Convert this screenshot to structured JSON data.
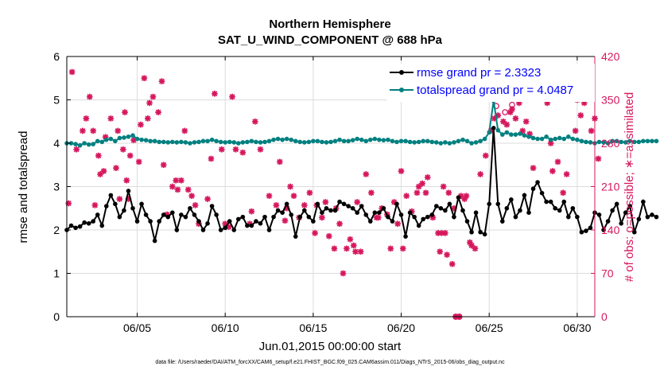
{
  "chart_data": {
    "type": "line",
    "title": "Northern Hemisphere",
    "subtitle": "SAT_U_WIND_COMPONENT @ 688 hPa",
    "xlabel": "Jun.01,2015 00:00:00 start",
    "ylabel": "rmse and totalspread",
    "ylabel_right": "# of obs: o=possible; ∗=assimilated",
    "footnote": "data file: /Users/raeder/DAI/ATM_forcXX/CAM6_setup/f.e21.FHIST_BGC.f09_025.CAM6assim.011/Diags_NTrS_2015-06/obs_diag_output.nc",
    "xlim": [
      1,
      31
    ],
    "ylim": [
      0,
      6
    ],
    "ylim_right": [
      0,
      420
    ],
    "xticks": [
      5,
      10,
      15,
      20,
      25,
      30
    ],
    "xtick_labels": [
      "06/05",
      "06/10",
      "06/15",
      "06/20",
      "06/25",
      "06/30"
    ],
    "yticks": [
      0,
      1,
      2,
      3,
      4,
      5,
      6
    ],
    "yticks_right": [
      0,
      70,
      140,
      210,
      280,
      350,
      420
    ],
    "colors": {
      "rmse": "#000000",
      "spread": "#008080",
      "obs": "#d6175d",
      "legend_text": "#0000ff",
      "grid": "#dcdcdc"
    },
    "legend": {
      "position": "top-right",
      "entries": [
        "rmse grand pr = 2.3323",
        "totalspread grand pr = 4.0487"
      ]
    },
    "series": [
      {
        "name": "rmse",
        "axis": "left",
        "x_start": 1.0,
        "dx": 0.25,
        "values": [
          2.0,
          2.1,
          2.05,
          2.08,
          2.17,
          2.15,
          2.2,
          2.35,
          2.1,
          2.55,
          2.8,
          2.6,
          2.3,
          2.45,
          2.9,
          2.5,
          2.2,
          2.6,
          2.35,
          2.2,
          1.75,
          2.2,
          2.35,
          2.3,
          2.4,
          2.0,
          2.35,
          2.3,
          2.5,
          2.35,
          2.2,
          2.0,
          2.15,
          2.55,
          2.35,
          2.0,
          2.05,
          2.2,
          2.0,
          2.25,
          2.3,
          2.1,
          2.1,
          2.2,
          2.15,
          2.3,
          2.0,
          2.3,
          2.45,
          2.4,
          2.6,
          2.35,
          1.85,
          2.3,
          2.45,
          2.3,
          2.2,
          2.6,
          2.4,
          2.5,
          2.45,
          2.45,
          2.65,
          2.6,
          2.55,
          2.5,
          2.4,
          2.55,
          2.35,
          2.2,
          2.4,
          2.4,
          2.5,
          2.3,
          2.2,
          2.6,
          2.35,
          1.85,
          2.4,
          2.3,
          2.1,
          2.25,
          2.3,
          2.35,
          2.55,
          2.5,
          2.45,
          2.6,
          2.3,
          2.75,
          2.45,
          2.2,
          1.95,
          2.4,
          1.95,
          1.9,
          2.6,
          4.35,
          2.6,
          2.2,
          2.5,
          2.7,
          2.3,
          2.45,
          2.8,
          2.4,
          2.95,
          3.1,
          2.85,
          2.65,
          2.65,
          2.5,
          2.45,
          2.65,
          2.3,
          2.5,
          2.3,
          1.95,
          1.98,
          2.05,
          2.4,
          2.35,
          2.0,
          2.2,
          2.45,
          2.6,
          2.15,
          2.4,
          2.55,
          1.95,
          2.25,
          2.65,
          2.3,
          2.35,
          2.3
        ]
      },
      {
        "name": "totalspread",
        "axis": "left",
        "x_start": 1.0,
        "dx": 0.25,
        "values": [
          4.0,
          4.0,
          3.98,
          3.95,
          4.0,
          3.97,
          3.98,
          4.05,
          4.03,
          4.08,
          4.1,
          4.05,
          4.12,
          4.13,
          4.15,
          4.18,
          4.1,
          4.08,
          4.07,
          4.05,
          4.05,
          4.03,
          4.03,
          4.02,
          4.03,
          4.02,
          4.03,
          4.02,
          4.0,
          4.02,
          4.03,
          4.05,
          4.05,
          4.08,
          4.05,
          4.03,
          4.02,
          4.03,
          4.02,
          4.0,
          4.02,
          4.03,
          4.05,
          4.03,
          4.02,
          4.03,
          4.05,
          4.08,
          4.1,
          4.08,
          4.1,
          4.08,
          4.05,
          4.03,
          4.02,
          4.03,
          4.05,
          4.05,
          4.03,
          4.02,
          4.03,
          4.05,
          4.08,
          4.05,
          4.05,
          4.07,
          4.1,
          4.08,
          4.05,
          4.08,
          4.1,
          4.08,
          4.07,
          4.08,
          4.05,
          4.03,
          4.05,
          4.05,
          4.03,
          4.02,
          4.03,
          4.05,
          4.05,
          4.03,
          4.02,
          4.0,
          4.02,
          4.0,
          4.02,
          4.05,
          4.08,
          4.05,
          4.0,
          4.02,
          4.05,
          4.1,
          4.25,
          4.98,
          4.3,
          4.2,
          4.25,
          4.2,
          4.2,
          4.22,
          4.18,
          4.15,
          4.12,
          4.1,
          4.1,
          4.15,
          4.08,
          4.1,
          4.12,
          4.1,
          4.15,
          4.1,
          4.08,
          4.05,
          4.03,
          4.02,
          4.0,
          4.03,
          4.02,
          4.0,
          4.05,
          4.05,
          4.03,
          4.02,
          4.05,
          4.03,
          4.03,
          4.05,
          4.05,
          4.05,
          4.05
        ]
      },
      {
        "name": "obs assimilated",
        "axis": "right",
        "type": "scatter",
        "marker": "asterisk",
        "points": [
          [
            1.1,
            183
          ],
          [
            1.3,
            395
          ],
          [
            1.55,
            270
          ],
          [
            1.9,
            300
          ],
          [
            2.1,
            320
          ],
          [
            2.3,
            355
          ],
          [
            2.5,
            300
          ],
          [
            2.6,
            180
          ],
          [
            2.8,
            260
          ],
          [
            2.9,
            230
          ],
          [
            3.1,
            235
          ],
          [
            3.2,
            290
          ],
          [
            3.5,
            320
          ],
          [
            3.8,
            240
          ],
          [
            3.9,
            300
          ],
          [
            4.0,
            190
          ],
          [
            4.2,
            270
          ],
          [
            4.3,
            330
          ],
          [
            4.4,
            220
          ],
          [
            4.5,
            190
          ],
          [
            4.6,
            260
          ],
          [
            4.8,
            285
          ],
          [
            5.1,
            250
          ],
          [
            5.2,
            310
          ],
          [
            5.4,
            385
          ],
          [
            5.6,
            320
          ],
          [
            5.7,
            345
          ],
          [
            5.9,
            355
          ],
          [
            6.2,
            330
          ],
          [
            6.4,
            380
          ],
          [
            6.5,
            245
          ],
          [
            6.7,
            165
          ],
          [
            7.0,
            210
          ],
          [
            7.2,
            220
          ],
          [
            7.3,
            205
          ],
          [
            7.5,
            220
          ],
          [
            7.7,
            300
          ],
          [
            7.9,
            205
          ],
          [
            8.1,
            195
          ],
          [
            8.3,
            180
          ],
          [
            8.5,
            150
          ],
          [
            9.0,
            190
          ],
          [
            9.2,
            255
          ],
          [
            9.4,
            360
          ],
          [
            9.8,
            270
          ],
          [
            10.0,
            150
          ],
          [
            10.2,
            145
          ],
          [
            10.4,
            355
          ],
          [
            10.6,
            270
          ],
          [
            11.0,
            265
          ],
          [
            11.4,
            150
          ],
          [
            11.5,
            170
          ],
          [
            11.7,
            315
          ],
          [
            12.0,
            270
          ],
          [
            12.5,
            195
          ],
          [
            12.9,
            180
          ],
          [
            13.1,
            250
          ],
          [
            13.4,
            155
          ],
          [
            13.5,
            175
          ],
          [
            13.7,
            210
          ],
          [
            13.9,
            195
          ],
          [
            14.2,
            160
          ],
          [
            14.5,
            180
          ],
          [
            14.8,
            200
          ],
          [
            15.1,
            135
          ],
          [
            15.2,
            180
          ],
          [
            15.5,
            160
          ],
          [
            15.7,
            185
          ],
          [
            15.9,
            130
          ],
          [
            16.2,
            110
          ],
          [
            16.3,
            175
          ],
          [
            16.5,
            150
          ],
          [
            16.7,
            70
          ],
          [
            16.9,
            110
          ],
          [
            17.1,
            125
          ],
          [
            17.3,
            115
          ],
          [
            17.4,
            105
          ],
          [
            17.5,
            185
          ],
          [
            17.7,
            105
          ],
          [
            18.0,
            230
          ],
          [
            18.3,
            200
          ],
          [
            18.6,
            160
          ],
          [
            18.7,
            160
          ],
          [
            18.9,
            175
          ],
          [
            19.2,
            165
          ],
          [
            19.4,
            110
          ],
          [
            19.6,
            185
          ],
          [
            19.8,
            150
          ],
          [
            20.0,
            235
          ],
          [
            20.1,
            110
          ],
          [
            20.3,
            195
          ],
          [
            20.6,
            170
          ],
          [
            20.9,
            200
          ],
          [
            21.0,
            210
          ],
          [
            21.2,
            215
          ],
          [
            21.4,
            200
          ],
          [
            21.5,
            225
          ],
          [
            21.8,
            160
          ],
          [
            22.1,
            135
          ],
          [
            22.2,
            105
          ],
          [
            22.3,
            135
          ],
          [
            22.4,
            210
          ],
          [
            22.5,
            135
          ],
          [
            22.6,
            100
          ],
          [
            22.7,
            200
          ],
          [
            22.9,
            85
          ],
          [
            23.0,
            175
          ],
          [
            23.1,
            0
          ],
          [
            23.3,
            0
          ],
          [
            23.4,
            195
          ],
          [
            23.6,
            190
          ],
          [
            23.7,
            195
          ],
          [
            23.9,
            120
          ],
          [
            24.0,
            115
          ],
          [
            24.2,
            110
          ],
          [
            24.5,
            230
          ],
          [
            24.8,
            260
          ],
          [
            25.1,
            300
          ],
          [
            25.3,
            320
          ],
          [
            25.5,
            325
          ],
          [
            25.8,
            315
          ],
          [
            26.0,
            310
          ],
          [
            26.2,
            330
          ],
          [
            26.3,
            335
          ],
          [
            26.5,
            320
          ],
          [
            26.7,
            345
          ],
          [
            26.9,
            300
          ],
          [
            27.1,
            315
          ],
          [
            27.3,
            295
          ],
          [
            27.5,
            240
          ],
          [
            28.1,
            370
          ],
          [
            28.3,
            345
          ],
          [
            28.5,
            280
          ],
          [
            28.6,
            235
          ],
          [
            28.9,
            250
          ],
          [
            29.2,
            200
          ],
          [
            29.4,
            230
          ],
          [
            29.7,
            360
          ],
          [
            29.9,
            300
          ],
          [
            30.0,
            350
          ],
          [
            30.2,
            325
          ],
          [
            30.4,
            345
          ],
          [
            30.6,
            385
          ],
          [
            30.8,
            300
          ],
          [
            31.0,
            320
          ],
          [
            31.2,
            255
          ]
        ]
      },
      {
        "name": "obs possible",
        "axis": "right",
        "type": "scatter",
        "marker": "circle",
        "points": [
          [
            23.1,
            0
          ],
          [
            23.3,
            0
          ],
          [
            25.4,
            340
          ],
          [
            25.9,
            330
          ],
          [
            26.3,
            342
          ],
          [
            26.5,
            398
          ]
        ]
      }
    ]
  }
}
